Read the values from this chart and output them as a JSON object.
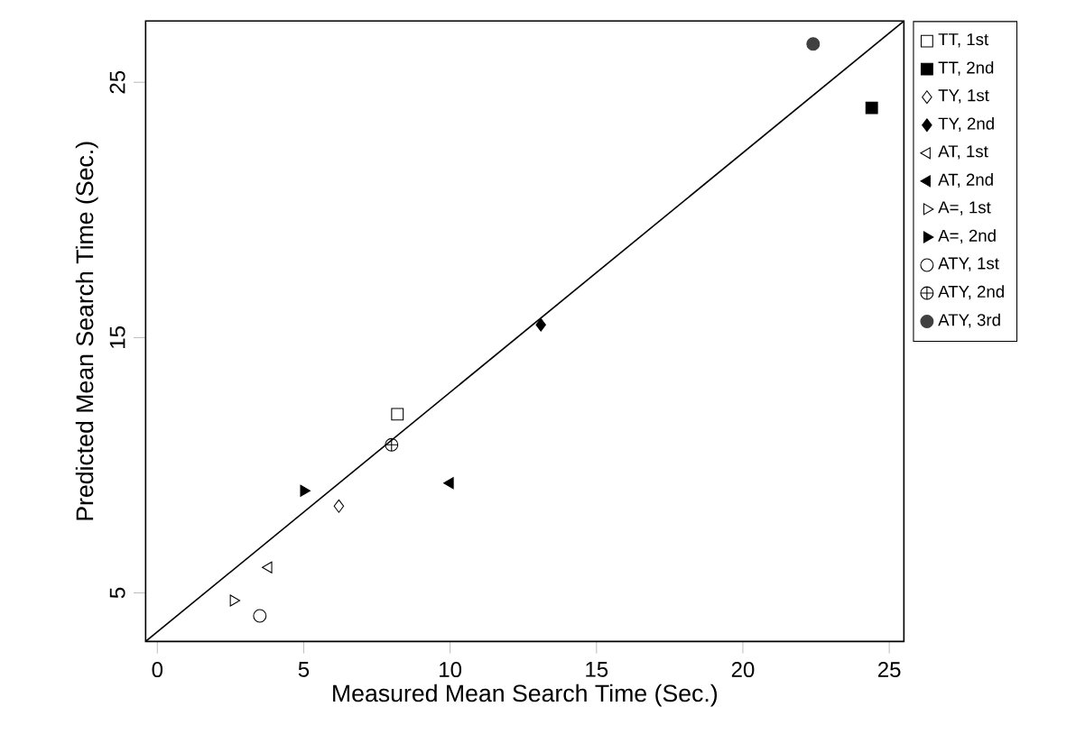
{
  "chart_data": {
    "type": "scatter",
    "xlabel": "Measured Mean Search Time (Sec.)",
    "ylabel": "Predicted Mean Search Time (Sec.)",
    "xlim": [
      -0.4,
      25.5
    ],
    "ylim": [
      3.1,
      27.4
    ],
    "xticks": [
      0,
      5,
      10,
      15,
      20,
      25
    ],
    "yticks": [
      5,
      15,
      25
    ],
    "grid": false,
    "legend": "top right",
    "series": [
      {
        "name": "TT, 1st",
        "color": "#000000",
        "marker": "square-open",
        "x": [
          8.2
        ],
        "values": [
          12.0
        ]
      },
      {
        "name": "TT, 2nd",
        "color": "#000000",
        "marker": "square",
        "x": [
          24.4
        ],
        "values": [
          24.0
        ]
      },
      {
        "name": "TY, 1st",
        "color": "#000000",
        "marker": "diamond-open",
        "x": [
          6.2
        ],
        "values": [
          8.4
        ]
      },
      {
        "name": "TY, 2nd",
        "color": "#000000",
        "marker": "diamond",
        "x": [
          13.1
        ],
        "values": [
          15.5
        ]
      },
      {
        "name": "AT, 1st",
        "color": "#000000",
        "marker": "triangle-left-open",
        "x": [
          3.8
        ],
        "values": [
          6.0
        ]
      },
      {
        "name": "AT, 2nd",
        "color": "#000000",
        "marker": "triangle-left",
        "x": [
          10.0
        ],
        "values": [
          9.3
        ]
      },
      {
        "name": "A=, 1st",
        "color": "#000000",
        "marker": "triangle-right-open",
        "x": [
          2.6
        ],
        "values": [
          4.7
        ]
      },
      {
        "name": "A=, 2nd",
        "color": "#000000",
        "marker": "triangle-right",
        "x": [
          5.0
        ],
        "values": [
          9.0
        ]
      },
      {
        "name": "ATY, 1st",
        "color": "#000000",
        "marker": "circle-open",
        "x": [
          3.5
        ],
        "values": [
          4.1
        ]
      },
      {
        "name": "ATY, 2nd",
        "color": "#000000",
        "marker": "cross",
        "x": [
          8.0
        ],
        "values": [
          10.8
        ]
      },
      {
        "name": "ATY, 3rd",
        "color": "#404040",
        "marker": "circle",
        "x": [
          22.4
        ],
        "values": [
          26.5
        ]
      },
      {
        "type": "line",
        "color": "#000000",
        "marker": "none",
        "x": [
          -0.4,
          25.5
        ],
        "values": [
          3.1,
          27.4
        ]
      }
    ]
  }
}
